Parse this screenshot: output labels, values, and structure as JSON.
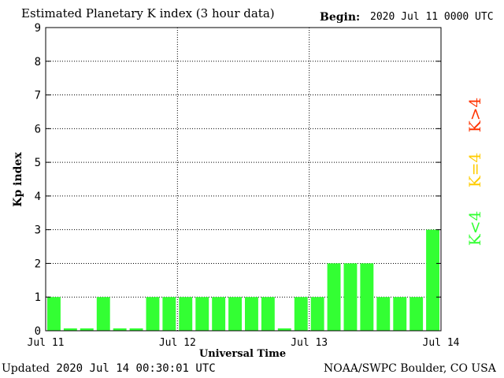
{
  "header": {
    "title": "Estimated Planetary K index (3 hour data)",
    "begin_label": "Begin:",
    "begin_value": "2020 Jul 11 0000 UTC"
  },
  "footer": {
    "updated_label": "Updated",
    "updated_value": "2020 Jul 14 00:30:01 UTC",
    "credit": "NOAA/SWPC Boulder, CO USA"
  },
  "legend": {
    "items": [
      {
        "label": "K<4",
        "color": "#33ff33"
      },
      {
        "label": "K=4",
        "color": "#ffcc00"
      },
      {
        "label": "K>4",
        "color": "#ff3300"
      }
    ]
  },
  "chart_data": {
    "type": "bar",
    "title": "Estimated Planetary K index (3 hour data)",
    "xlabel": "Universal Time",
    "ylabel": "Kp index",
    "ylim": [
      0,
      9
    ],
    "yticks": [
      "0",
      "1",
      "2",
      "3",
      "4",
      "5",
      "6",
      "7",
      "8",
      "9"
    ],
    "xticks": [
      "Jul 11",
      "Jul 12",
      "Jul 13",
      "Jul 14"
    ],
    "grid": true,
    "bar_color": "#33ff33",
    "values": [
      1,
      0.07,
      0.07,
      1,
      0.07,
      0.07,
      1,
      1,
      1,
      1,
      1,
      1,
      1,
      1,
      0.07,
      1,
      1,
      2,
      2,
      2,
      1,
      1,
      1,
      3
    ]
  }
}
